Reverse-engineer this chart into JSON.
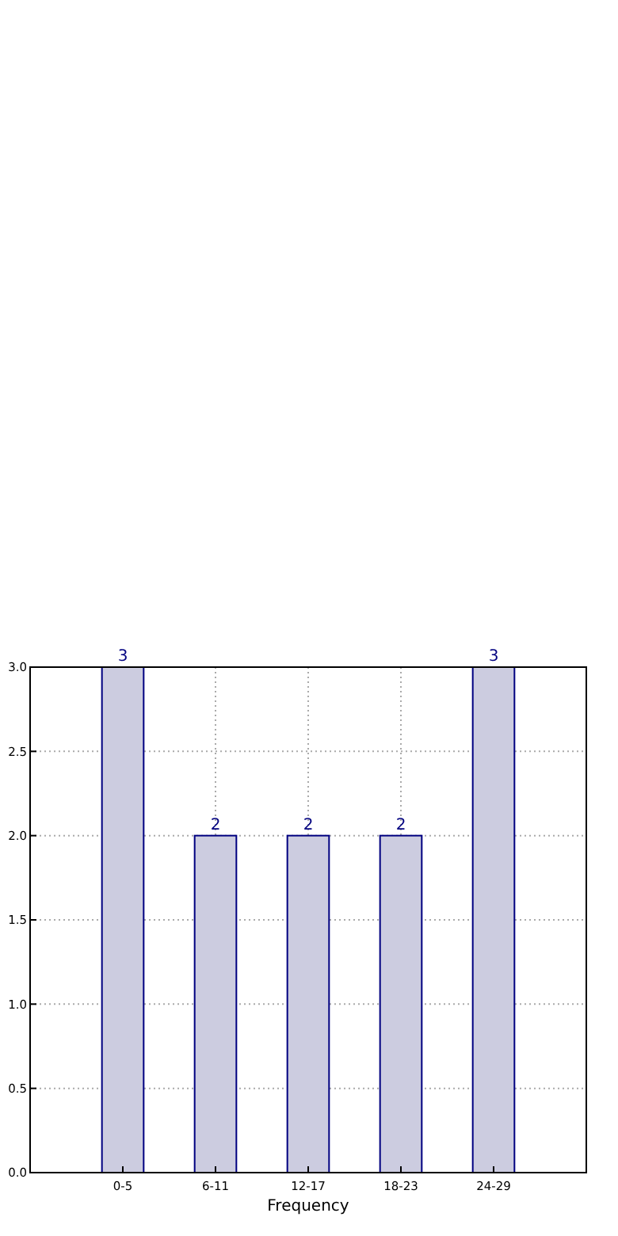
{
  "chart_data": {
    "type": "bar",
    "xlabel": "Frequency",
    "categories": [
      "0-5",
      "6-11",
      "12-17",
      "18-23",
      "24-29"
    ],
    "values": [
      3,
      2,
      2,
      2,
      3
    ],
    "color": "#cccce0",
    "ylim": [
      0,
      3
    ],
    "yticks": [
      {
        "value": 0,
        "label": "0.0"
      },
      {
        "value": 0.5,
        "label": "0.5"
      },
      {
        "value": 1,
        "label": "1.0"
      },
      {
        "value": 1.5,
        "label": "1.5"
      },
      {
        "value": 2,
        "label": "2.0"
      },
      {
        "value": 2.5,
        "label": "2.5"
      },
      {
        "value": 3,
        "label": "3.0"
      }
    ],
    "grid": true,
    "data_labels": true
  }
}
